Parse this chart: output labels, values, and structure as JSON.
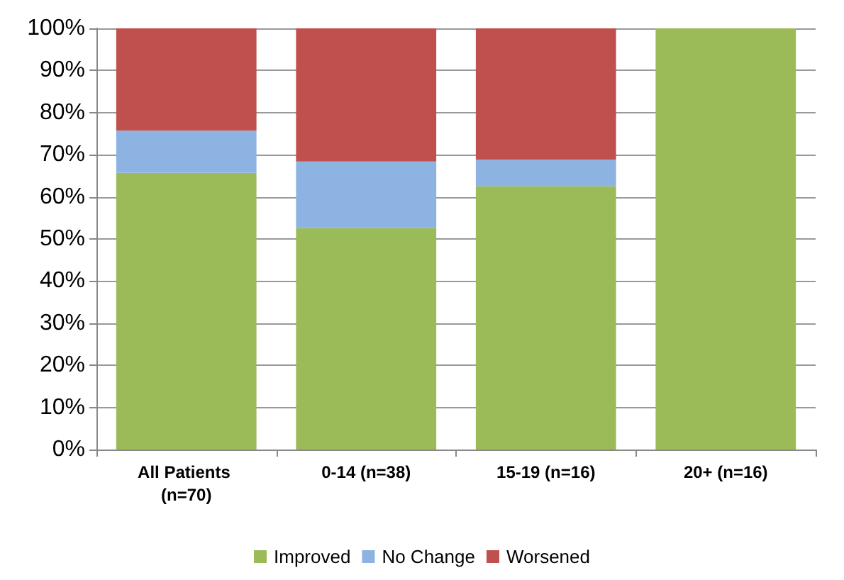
{
  "chart_data": {
    "type": "bar",
    "stacked": true,
    "categories": [
      "All Patients (n=70)",
      "0-14 (n=38)",
      "15-19 (n=16)",
      "20+ (n=16)"
    ],
    "series": [
      {
        "name": "Improved",
        "color": "#9bbb59",
        "values": [
          65.7,
          52.6,
          62.5,
          100
        ]
      },
      {
        "name": "No Change",
        "color": "#8db3e2",
        "values": [
          10,
          15.8,
          6.3,
          0
        ]
      },
      {
        "name": "Worsened",
        "color": "#c0504d",
        "values": [
          24.3,
          31.6,
          31.2,
          0
        ]
      }
    ],
    "ylim": [
      0,
      100
    ],
    "yticks": [
      {
        "value": 0,
        "label": "0%"
      },
      {
        "value": 10,
        "label": "10%"
      },
      {
        "value": 20,
        "label": "20%"
      },
      {
        "value": 30,
        "label": "30%"
      },
      {
        "value": 40,
        "label": "40%"
      },
      {
        "value": 50,
        "label": "50%"
      },
      {
        "value": 60,
        "label": "60%"
      },
      {
        "value": 70,
        "label": "70%"
      },
      {
        "value": 80,
        "label": "80%"
      },
      {
        "value": 90,
        "label": "90%"
      },
      {
        "value": 100,
        "label": "100%"
      }
    ],
    "grid": "y",
    "legend": "bottom"
  }
}
